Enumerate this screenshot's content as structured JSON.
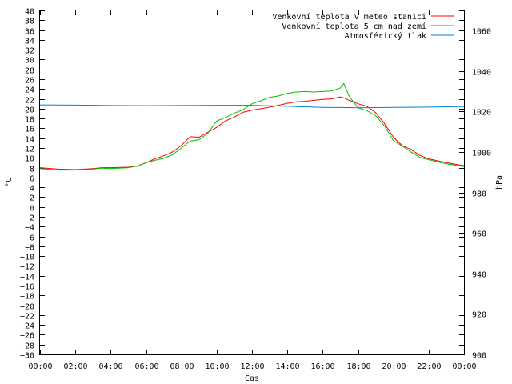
{
  "chart_data": {
    "type": "line",
    "xlabel": "Čas",
    "ylabel": "°C",
    "y2label": "hPa",
    "xlim": [
      0,
      24
    ],
    "ylim": [
      -30,
      40
    ],
    "y2lim": [
      900,
      1070
    ],
    "grid": false,
    "legend_position": "top-right",
    "x_ticks": [
      "00:00",
      "02:00",
      "04:00",
      "06:00",
      "08:00",
      "10:00",
      "12:00",
      "14:00",
      "16:00",
      "18:00",
      "20:00",
      "22:00",
      "00:00"
    ],
    "y_ticks": [
      40,
      38,
      36,
      34,
      32,
      30,
      28,
      26,
      24,
      22,
      20,
      18,
      16,
      14,
      12,
      10,
      8,
      6,
      4,
      2,
      0,
      -2,
      -4,
      -6,
      -8,
      -10,
      -12,
      -14,
      -16,
      -18,
      -20,
      -22,
      -24,
      -26,
      -28,
      -30
    ],
    "y2_ticks": [
      1060,
      1040,
      1020,
      1000,
      980,
      960,
      940,
      920,
      900
    ],
    "series": [
      {
        "name": "Venkovní teplota v meteo stanici",
        "color": "#ff0000",
        "axis": "left",
        "x": [
          0,
          1,
          2,
          3,
          3.5,
          4,
          5,
          5.5,
          6,
          6.5,
          7,
          7.5,
          8,
          8.5,
          9,
          9.5,
          10,
          10.5,
          11,
          11.5,
          12,
          12.5,
          13,
          13.5,
          14,
          14.5,
          15,
          15.5,
          16,
          16.5,
          17,
          17.2,
          17.5,
          18,
          18.5,
          19,
          19.5,
          20,
          20.5,
          21,
          21.5,
          22,
          23,
          24
        ],
        "y": [
          8,
          7.7,
          7.6,
          7.8,
          8,
          8,
          8.1,
          8.3,
          9,
          9.8,
          10.4,
          11.2,
          12.5,
          14.3,
          14.2,
          15.2,
          16.2,
          17.5,
          18.3,
          19.3,
          19.7,
          20,
          20.3,
          20.7,
          21.1,
          21.4,
          21.5,
          21.7,
          21.9,
          22,
          22.4,
          22.2,
          21.7,
          21,
          20.5,
          19.2,
          17,
          14.2,
          12.5,
          11.7,
          10.5,
          9.8,
          9,
          8.4
        ]
      },
      {
        "name": "Venkovní teplota 5 cm nad zemí",
        "color": "#00c000",
        "axis": "left",
        "x": [
          0,
          1,
          2,
          3,
          3.5,
          4,
          5,
          5.5,
          6,
          6.5,
          7,
          7.5,
          8,
          8.5,
          9,
          9.5,
          10,
          10.5,
          11,
          11.5,
          12,
          12.5,
          13,
          13.5,
          14,
          14.5,
          15,
          15.5,
          16,
          16.5,
          17,
          17.2,
          17.5,
          18,
          18.5,
          19,
          19.5,
          20,
          20.5,
          21,
          21.5,
          22,
          23,
          24
        ],
        "y": [
          7.8,
          7.5,
          7.5,
          7.7,
          7.9,
          7.8,
          8,
          8.3,
          9,
          9.5,
          9.9,
          10.6,
          12,
          13.4,
          13.7,
          15,
          17.5,
          18.2,
          19.1,
          19.8,
          21,
          21.6,
          22.3,
          22.6,
          23.1,
          23.4,
          23.5,
          23.4,
          23.5,
          23.6,
          24.2,
          25.1,
          22.5,
          20.2,
          19.6,
          18.6,
          16.5,
          13.5,
          12.4,
          11.2,
          10.1,
          9.6,
          8.8,
          8.2
        ]
      },
      {
        "name": "Atmosférický tlak",
        "color": "#0080d0",
        "axis": "right",
        "x": [
          0,
          2,
          4,
          6,
          8,
          10,
          12,
          14,
          16,
          17,
          18,
          20,
          22,
          24
        ],
        "y": [
          1023.3,
          1023.2,
          1023,
          1022.9,
          1023,
          1023.1,
          1023.1,
          1022.6,
          1022.1,
          1022,
          1021.9,
          1022.1,
          1022.2,
          1022.5
        ]
      }
    ]
  }
}
